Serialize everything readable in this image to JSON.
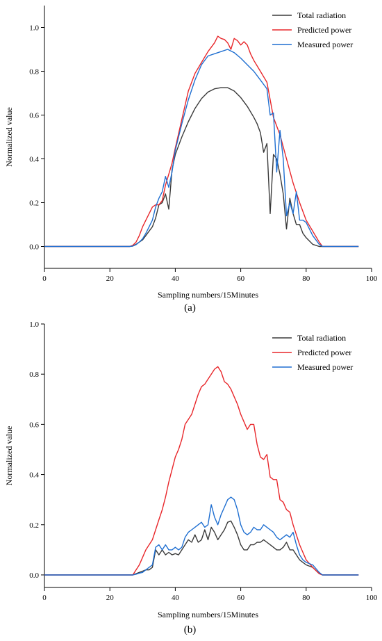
{
  "chart_data": [
    {
      "type": "line",
      "panel_label": "(a)",
      "xlabel": "Sampling numbers/15Minutes",
      "ylabel": "Normalized value",
      "xlim": [
        0,
        100
      ],
      "ylim": [
        -0.1,
        1.1
      ],
      "xticks": [
        0,
        20,
        40,
        60,
        80,
        100
      ],
      "yticks": [
        0.0,
        0.2,
        0.4,
        0.6,
        0.8,
        1.0
      ],
      "grid": false,
      "legend_position": "top-right",
      "series": [
        {
          "name": "Total radiation",
          "color": "#3a3a3a",
          "x": [
            0,
            26,
            27,
            28,
            29,
            30,
            31,
            32,
            33,
            34,
            35,
            36,
            37,
            38,
            39,
            40,
            42,
            44,
            46,
            48,
            50,
            52,
            54,
            56,
            58,
            60,
            62,
            64,
            65,
            66,
            67,
            68,
            69,
            70,
            71,
            72,
            73,
            74,
            75,
            76,
            77,
            78,
            79,
            80,
            82,
            84,
            85,
            96
          ],
          "y": [
            0,
            0,
            0.002,
            0.01,
            0.02,
            0.03,
            0.05,
            0.07,
            0.09,
            0.13,
            0.19,
            0.2,
            0.24,
            0.17,
            0.35,
            0.42,
            0.5,
            0.57,
            0.63,
            0.675,
            0.705,
            0.72,
            0.725,
            0.725,
            0.71,
            0.68,
            0.64,
            0.59,
            0.56,
            0.52,
            0.43,
            0.47,
            0.15,
            0.42,
            0.4,
            0.33,
            0.24,
            0.08,
            0.22,
            0.15,
            0.1,
            0.1,
            0.06,
            0.04,
            0.01,
            0,
            0,
            0
          ]
        },
        {
          "name": "Predicted power",
          "color": "#e8262a",
          "x": [
            0,
            26,
            27,
            28,
            29,
            30,
            31,
            32,
            33,
            34,
            35,
            36,
            37,
            38,
            39,
            40,
            42,
            44,
            46,
            48,
            50,
            52,
            53,
            54,
            55,
            56,
            57,
            58,
            59,
            60,
            61,
            62,
            63,
            64,
            66,
            68,
            70,
            72,
            74,
            76,
            78,
            80,
            82,
            84,
            85,
            96
          ],
          "y": [
            0,
            0,
            0.005,
            0.02,
            0.05,
            0.09,
            0.12,
            0.15,
            0.18,
            0.19,
            0.19,
            0.21,
            0.28,
            0.33,
            0.38,
            0.45,
            0.58,
            0.71,
            0.79,
            0.84,
            0.89,
            0.93,
            0.96,
            0.95,
            0.945,
            0.93,
            0.9,
            0.95,
            0.94,
            0.92,
            0.935,
            0.92,
            0.88,
            0.85,
            0.8,
            0.75,
            0.59,
            0.51,
            0.4,
            0.29,
            0.2,
            0.12,
            0.07,
            0.02,
            0,
            0
          ]
        },
        {
          "name": "Measured power",
          "color": "#1f6fd1",
          "x": [
            0,
            26,
            27,
            28,
            29,
            30,
            31,
            32,
            33,
            34,
            35,
            36,
            37,
            38,
            39,
            40,
            42,
            44,
            46,
            48,
            50,
            52,
            54,
            56,
            58,
            60,
            62,
            64,
            66,
            68,
            69,
            70,
            71,
            72,
            73,
            74,
            75,
            76,
            77,
            78,
            79,
            80,
            82,
            84,
            85,
            96
          ],
          "y": [
            0,
            0,
            0.002,
            0.008,
            0.02,
            0.035,
            0.06,
            0.09,
            0.12,
            0.18,
            0.22,
            0.25,
            0.32,
            0.27,
            0.34,
            0.44,
            0.56,
            0.67,
            0.76,
            0.83,
            0.87,
            0.88,
            0.89,
            0.9,
            0.885,
            0.86,
            0.83,
            0.8,
            0.76,
            0.72,
            0.6,
            0.61,
            0.34,
            0.53,
            0.4,
            0.14,
            0.2,
            0.15,
            0.25,
            0.12,
            0.12,
            0.11,
            0.05,
            0.01,
            0,
            0
          ]
        }
      ]
    },
    {
      "type": "line",
      "panel_label": "(b)",
      "xlabel": "Sampling numbers/15Minutes",
      "ylabel": "Normalized value",
      "xlim": [
        0,
        100
      ],
      "ylim": [
        -0.05,
        1.0
      ],
      "xticks": [
        0,
        20,
        40,
        60,
        80,
        100
      ],
      "yticks": [
        0.0,
        0.2,
        0.4,
        0.6,
        0.8,
        1.0
      ],
      "grid": false,
      "legend_position": "top-right",
      "series": [
        {
          "name": "Total radiation",
          "color": "#3a3a3a",
          "x": [
            0,
            27,
            28,
            29,
            30,
            31,
            32,
            33,
            34,
            35,
            36,
            37,
            38,
            39,
            40,
            41,
            42,
            43,
            44,
            45,
            46,
            47,
            48,
            49,
            50,
            51,
            52,
            53,
            54,
            55,
            56,
            57,
            58,
            59,
            60,
            61,
            62,
            63,
            64,
            65,
            66,
            67,
            68,
            69,
            70,
            71,
            72,
            73,
            74,
            75,
            76,
            77,
            78,
            79,
            80,
            82,
            84,
            85,
            96
          ],
          "y": [
            0,
            0,
            0.005,
            0.01,
            0.015,
            0.02,
            0.02,
            0.03,
            0.1,
            0.08,
            0.1,
            0.08,
            0.09,
            0.08,
            0.085,
            0.08,
            0.1,
            0.12,
            0.14,
            0.13,
            0.16,
            0.13,
            0.14,
            0.18,
            0.14,
            0.19,
            0.17,
            0.14,
            0.16,
            0.18,
            0.21,
            0.215,
            0.19,
            0.16,
            0.12,
            0.1,
            0.1,
            0.12,
            0.12,
            0.13,
            0.13,
            0.14,
            0.13,
            0.12,
            0.11,
            0.1,
            0.1,
            0.11,
            0.13,
            0.1,
            0.1,
            0.08,
            0.06,
            0.05,
            0.04,
            0.03,
            0.005,
            0,
            0
          ]
        },
        {
          "name": "Predicted power",
          "color": "#e8262a",
          "x": [
            0,
            27,
            28,
            29,
            30,
            31,
            32,
            33,
            34,
            35,
            36,
            37,
            38,
            39,
            40,
            41,
            42,
            43,
            44,
            45,
            46,
            47,
            48,
            49,
            50,
            51,
            52,
            53,
            54,
            55,
            56,
            57,
            58,
            59,
            60,
            61,
            62,
            63,
            64,
            65,
            66,
            67,
            68,
            69,
            70,
            71,
            72,
            73,
            74,
            75,
            76,
            77,
            78,
            79,
            80,
            82,
            84,
            85,
            96
          ],
          "y": [
            0,
            0,
            0.02,
            0.04,
            0.07,
            0.1,
            0.12,
            0.14,
            0.18,
            0.22,
            0.26,
            0.31,
            0.37,
            0.42,
            0.47,
            0.5,
            0.54,
            0.6,
            0.62,
            0.64,
            0.68,
            0.72,
            0.75,
            0.76,
            0.78,
            0.8,
            0.82,
            0.83,
            0.81,
            0.77,
            0.76,
            0.74,
            0.71,
            0.68,
            0.64,
            0.61,
            0.58,
            0.6,
            0.6,
            0.52,
            0.47,
            0.46,
            0.48,
            0.39,
            0.38,
            0.38,
            0.3,
            0.29,
            0.26,
            0.25,
            0.2,
            0.16,
            0.12,
            0.09,
            0.06,
            0.03,
            0.005,
            0,
            0
          ]
        },
        {
          "name": "Measured power",
          "color": "#1f6fd1",
          "x": [
            0,
            27,
            28,
            29,
            30,
            31,
            32,
            33,
            34,
            35,
            36,
            37,
            38,
            39,
            40,
            41,
            42,
            43,
            44,
            45,
            46,
            47,
            48,
            49,
            50,
            51,
            52,
            53,
            54,
            55,
            56,
            57,
            58,
            59,
            60,
            61,
            62,
            63,
            64,
            65,
            66,
            67,
            68,
            69,
            70,
            71,
            72,
            73,
            74,
            75,
            76,
            77,
            78,
            79,
            80,
            82,
            84,
            85,
            96
          ],
          "y": [
            0,
            0,
            0.003,
            0.007,
            0.01,
            0.02,
            0.03,
            0.04,
            0.11,
            0.12,
            0.1,
            0.12,
            0.1,
            0.1,
            0.11,
            0.1,
            0.11,
            0.15,
            0.17,
            0.18,
            0.19,
            0.2,
            0.21,
            0.19,
            0.2,
            0.28,
            0.23,
            0.2,
            0.24,
            0.27,
            0.3,
            0.31,
            0.3,
            0.26,
            0.2,
            0.17,
            0.16,
            0.17,
            0.19,
            0.18,
            0.18,
            0.2,
            0.19,
            0.18,
            0.17,
            0.15,
            0.14,
            0.15,
            0.16,
            0.15,
            0.17,
            0.12,
            0.08,
            0.06,
            0.05,
            0.04,
            0.01,
            0,
            0
          ]
        }
      ]
    }
  ]
}
